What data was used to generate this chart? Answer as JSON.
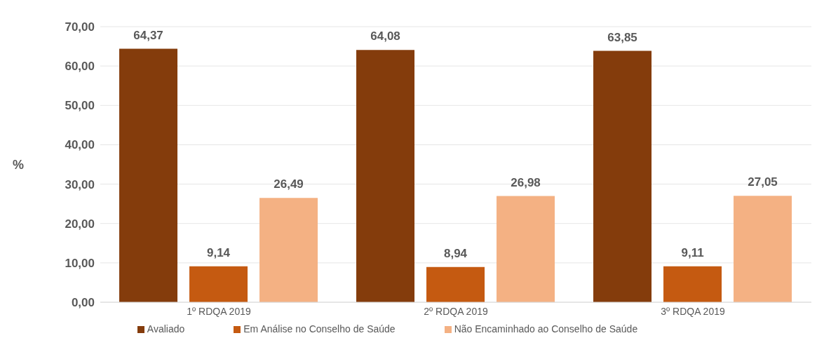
{
  "chart_data": {
    "type": "bar",
    "ylabel": "%",
    "categories": [
      "1º RDQA 2019",
      "2º RDQA 2019",
      "3º RDQA 2019"
    ],
    "series": [
      {
        "name": "Avaliado",
        "color": "#843c0c",
        "values": [
          64.37,
          64.08,
          63.85
        ],
        "value_labels": [
          "64,37",
          "64,08",
          "63,85"
        ]
      },
      {
        "name": "Em Análise no Conselho de Saúde",
        "color": "#c55a11",
        "values": [
          9.14,
          8.94,
          9.11
        ],
        "value_labels": [
          "9,14",
          "8,94",
          "9,11"
        ]
      },
      {
        "name": "Não Encaminhado ao Conselho de Saúde",
        "color": "#f4b183",
        "values": [
          26.49,
          26.98,
          27.05
        ],
        "value_labels": [
          "26,49",
          "26,98",
          "27,05"
        ]
      }
    ],
    "ylim": [
      0,
      70
    ],
    "yticks": [
      {
        "value": 0,
        "label": "0,00"
      },
      {
        "value": 10,
        "label": "10,00"
      },
      {
        "value": 20,
        "label": "20,00"
      },
      {
        "value": 30,
        "label": "30,00"
      },
      {
        "value": 40,
        "label": "40,00"
      },
      {
        "value": 50,
        "label": "50,00"
      },
      {
        "value": 60,
        "label": "60,00"
      },
      {
        "value": 70,
        "label": "70,00"
      }
    ],
    "grid": "y",
    "legend": "bottom"
  }
}
